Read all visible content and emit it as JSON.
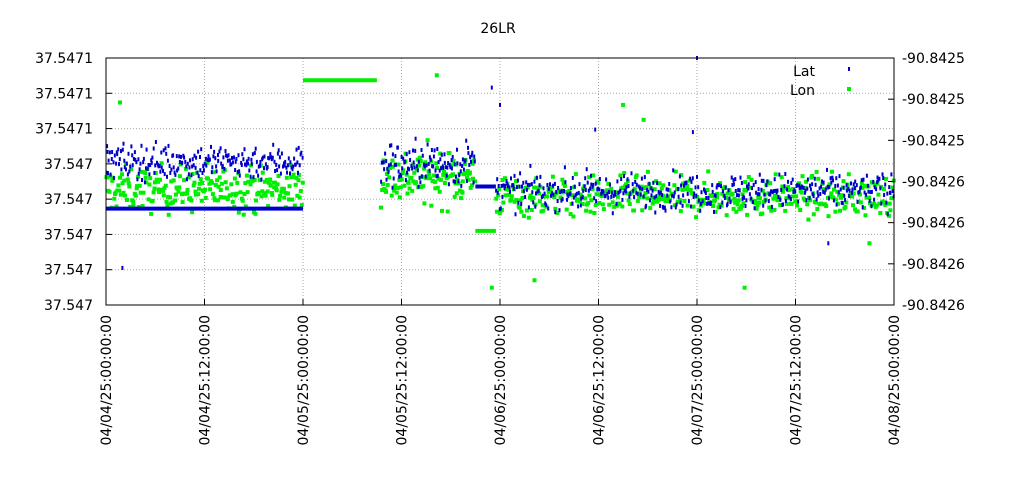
{
  "chart_data": {
    "type": "scatter",
    "title": "26LR",
    "x_tick_labels": [
      "04/04/25:00:00:00",
      "04/04/25:12:00:00",
      "04/05/25:00:00:00",
      "04/05/25:12:00:00",
      "04/06/25:00:00:00",
      "04/06/25:12:00:00",
      "04/07/25:00:00:00",
      "04/07/25:12:00:00",
      "04/08/25:00:00:00"
    ],
    "x_range_hours": [
      0,
      96
    ],
    "y_left_tick_labels": [
      "37.547",
      "37.547",
      "37.547",
      "37.547",
      "37.547",
      "37.5471",
      "37.5471",
      "37.5471"
    ],
    "y_right_tick_labels": [
      "-90.8426",
      "-90.8426",
      "-90.8426",
      "-90.8426",
      "-90.8425",
      "-90.8425",
      "-90.8425"
    ],
    "grid": true,
    "legend_position": "top-right",
    "series": [
      {
        "name": "Lat",
        "axis": "left",
        "color": "#0000cc",
        "note_range": [
          0,
          1
        ],
        "segments": [
          {
            "type": "scatter",
            "x_range": [
              0,
              24
            ],
            "center": 0.58,
            "spread": 0.07,
            "count": 230
          },
          {
            "type": "line",
            "x_range": [
              0,
              24
            ],
            "y": 0.39
          },
          {
            "type": "scatter",
            "x_range": [
              33.5,
              45
            ],
            "center": 0.57,
            "spread": 0.09,
            "count": 120
          },
          {
            "type": "line",
            "x_range": [
              45,
              47.5
            ],
            "y": 0.48
          },
          {
            "type": "scatter",
            "x_range": [
              47.5,
              96
            ],
            "center": 0.46,
            "spread": 0.07,
            "count": 430
          }
        ],
        "points": [
          [
            0.2,
            0.62
          ],
          [
            2.0,
            0.15
          ],
          [
            47.0,
            0.88
          ],
          [
            48.0,
            0.81
          ],
          [
            59.6,
            0.71
          ],
          [
            71.5,
            0.7
          ],
          [
            72.0,
            1.0
          ],
          [
            88.0,
            0.25
          ]
        ]
      },
      {
        "name": "Lon",
        "axis": "right",
        "color": "#00ee00",
        "segments": [
          {
            "type": "scatter",
            "x_range": [
              0,
              24
            ],
            "center": 0.47,
            "spread": 0.09,
            "count": 230
          },
          {
            "type": "line",
            "x_range": [
              24,
              33
            ],
            "y": 0.91
          },
          {
            "type": "scatter",
            "x_range": [
              33.5,
              45
            ],
            "center": 0.52,
            "spread": 0.11,
            "count": 120
          },
          {
            "type": "line",
            "x_range": [
              45,
              47.5
            ],
            "y": 0.3
          },
          {
            "type": "scatter",
            "x_range": [
              47.5,
              96
            ],
            "center": 0.44,
            "spread": 0.08,
            "count": 430
          }
        ],
        "points": [
          [
            1.7,
            0.82
          ],
          [
            40.3,
            0.93
          ],
          [
            47.0,
            0.07
          ],
          [
            52.2,
            0.1
          ],
          [
            63.0,
            0.81
          ],
          [
            65.5,
            0.75
          ],
          [
            77.8,
            0.07
          ],
          [
            93.0,
            0.25
          ]
        ]
      }
    ]
  }
}
